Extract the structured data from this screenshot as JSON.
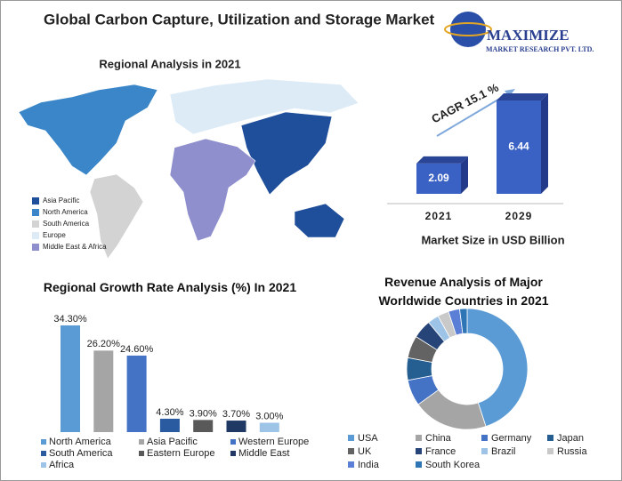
{
  "header": {
    "title": "Global Carbon Capture, Utilization and Storage Market",
    "logo_name": "MAXIMIZE",
    "logo_sub": "MARKET RESEARCH PVT. LTD."
  },
  "chart_data": [
    {
      "type": "map",
      "title": "Regional Analysis in 2021",
      "categories": [
        "Asia Pacific",
        "North America",
        "South America",
        "Europe",
        "Middle East & Africa"
      ],
      "colors": [
        "#1f4e9a",
        "#3a86c8",
        "#d3d3d3",
        "#ddebf7",
        "#8f8fce"
      ]
    },
    {
      "type": "bar",
      "categories": [
        "2021",
        "2029"
      ],
      "values": [
        2.09,
        6.44
      ],
      "color": "#3a62c4",
      "annotation": "CAGR 15.1 %",
      "x_label": "Market Size in USD Billion"
    },
    {
      "type": "bar",
      "title": "Regional Growth Rate Analysis (%) In 2021",
      "categories": [
        "North America",
        "Asia Pacific",
        "Western Europe",
        "South America",
        "Eastern Europe",
        "Middle East",
        "Africa"
      ],
      "values": [
        34.3,
        26.2,
        24.6,
        4.3,
        3.9,
        3.7,
        3.0
      ],
      "value_labels": [
        "34.30%",
        "26.20%",
        "24.60%",
        "4.30%",
        "3.90%",
        "3.70%",
        "3.00%"
      ],
      "colors": [
        "#5b9bd5",
        "#a5a5a5",
        "#4472c4",
        "#2a5aa0",
        "#595959",
        "#203864",
        "#9dc3e6"
      ]
    },
    {
      "type": "donut",
      "title": "Revenue Analysis of Major Worldwide Countries in 2021",
      "categories": [
        "USA",
        "China",
        "Germany",
        "Japan",
        "UK",
        "France",
        "Brazil",
        "Russia",
        "India",
        "South Korea"
      ],
      "values": [
        45,
        20,
        7,
        6,
        6,
        5,
        3,
        3,
        3,
        2
      ],
      "colors": [
        "#5b9bd5",
        "#a5a5a5",
        "#4472c4",
        "#255e91",
        "#636363",
        "#264478",
        "#9dc3e6",
        "#c9c9c9",
        "#5b7fd6",
        "#2e75b6"
      ]
    }
  ]
}
